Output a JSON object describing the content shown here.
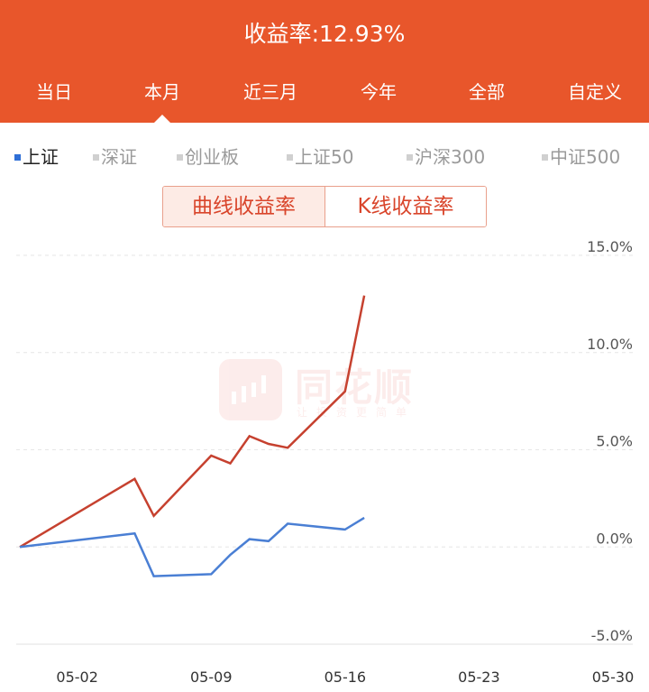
{
  "header": {
    "title": "收益率:12.93%",
    "background_color": "#e8562b",
    "tabs": [
      {
        "label": "当日"
      },
      {
        "label": "本月",
        "active": true
      },
      {
        "label": "近三月"
      },
      {
        "label": "今年"
      },
      {
        "label": "全部"
      },
      {
        "label": "自定义"
      }
    ]
  },
  "indices": [
    {
      "label": "上证",
      "active": true
    },
    {
      "label": "深证"
    },
    {
      "label": "创业板"
    },
    {
      "label": "上证50"
    },
    {
      "label": "沪深300"
    },
    {
      "label": "中证500"
    }
  ],
  "toggle": {
    "curve_label": "曲线收益率",
    "kline_label": "K线收益率",
    "selected": "curve"
  },
  "watermark": {
    "brand": "同花顺",
    "slogan": "让投资更简单",
    "icon": "candlestick-logo-icon"
  },
  "chart_data": {
    "type": "line",
    "title": "",
    "xlabel": "",
    "ylabel": "",
    "x_ticks": [
      "05-02",
      "05-09",
      "05-16",
      "05-23",
      "05-30"
    ],
    "y_ticks": [
      "15.0%",
      "10.0%",
      "5.0%",
      "0.0%",
      "-5.0%"
    ],
    "ylim": [
      -5,
      15
    ],
    "xlim": [
      "2022-04-29",
      "2022-05-30"
    ],
    "grid": true,
    "series": [
      {
        "color": "#c6412f",
        "points": [
          {
            "x": "2022-04-29",
            "y": 0.0
          },
          {
            "x": "2022-05-05",
            "y": 3.5
          },
          {
            "x": "2022-05-06",
            "y": 1.6
          },
          {
            "x": "2022-05-09",
            "y": 4.7
          },
          {
            "x": "2022-05-10",
            "y": 4.3
          },
          {
            "x": "2022-05-11",
            "y": 5.7
          },
          {
            "x": "2022-05-12",
            "y": 5.3
          },
          {
            "x": "2022-05-13",
            "y": 5.1
          },
          {
            "x": "2022-05-16",
            "y": 8.0
          },
          {
            "x": "2022-05-17",
            "y": 12.93
          }
        ]
      },
      {
        "color": "#4a7fd4",
        "points": [
          {
            "x": "2022-04-29",
            "y": 0.0
          },
          {
            "x": "2022-05-05",
            "y": 0.7
          },
          {
            "x": "2022-05-06",
            "y": -1.5
          },
          {
            "x": "2022-05-09",
            "y": -1.4
          },
          {
            "x": "2022-05-10",
            "y": -0.4
          },
          {
            "x": "2022-05-11",
            "y": 0.4
          },
          {
            "x": "2022-05-12",
            "y": 0.3
          },
          {
            "x": "2022-05-13",
            "y": 1.2
          },
          {
            "x": "2022-05-16",
            "y": 0.9
          },
          {
            "x": "2022-05-17",
            "y": 1.5
          }
        ]
      }
    ]
  }
}
